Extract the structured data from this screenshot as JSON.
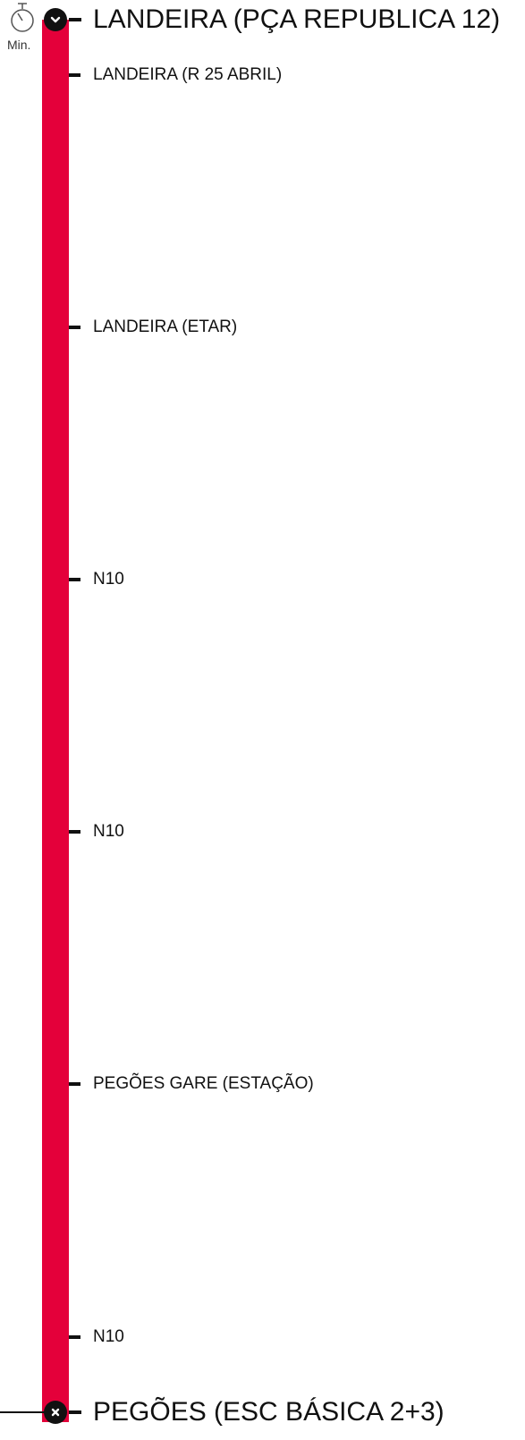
{
  "timer": {
    "icon": "stopwatch-icon",
    "unit_label": "Min."
  },
  "route": {
    "line_color": "#e4003a",
    "start_icon": "chevron-down-icon",
    "end_icon": "close-icon",
    "origin": "LANDEIRA (PÇA REPUBLICA 12)",
    "destination": "PEGÕES (ESC BÁSICA 2+3)",
    "stops": [
      "LANDEIRA (R 25 ABRIL)",
      "LANDEIRA (ETAR)",
      "N10",
      "N10",
      "PEGÕES GARE (ESTAÇÃO)",
      "N10"
    ]
  }
}
